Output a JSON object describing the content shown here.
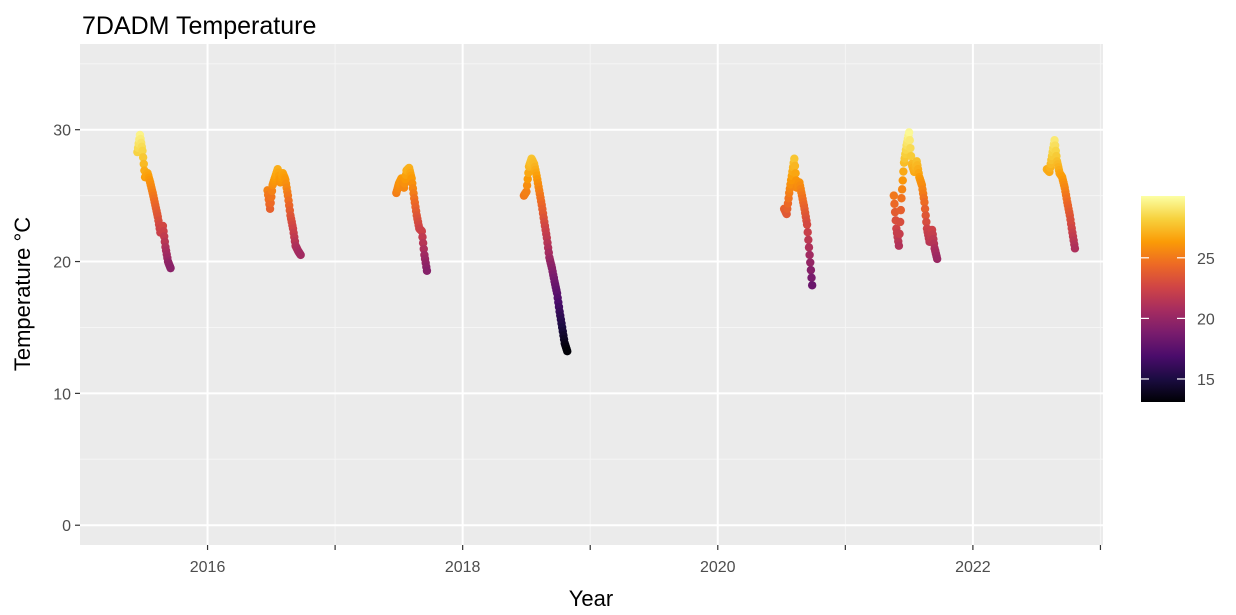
{
  "chart_data": {
    "type": "scatter",
    "title": "7DADM Temperature",
    "xlabel": "Year",
    "ylabel": "Temperature °C",
    "xlim": [
      2015.0,
      2023.02
    ],
    "ylim": [
      -1.5,
      36.5
    ],
    "x_ticks": [
      {
        "value": 2016,
        "label": "2016"
      },
      {
        "value": 2018,
        "label": "2018"
      },
      {
        "value": 2020,
        "label": "2020"
      },
      {
        "value": 2022,
        "label": "2022"
      }
    ],
    "x_minor_ticks": [
      2017,
      2019,
      2021,
      2023
    ],
    "y_ticks": [
      {
        "value": 0,
        "label": "0"
      },
      {
        "value": 10,
        "label": "10"
      },
      {
        "value": 20,
        "label": "20"
      },
      {
        "value": 30,
        "label": "30"
      }
    ],
    "y_minor_ticks": [
      5,
      15,
      25,
      35
    ],
    "grid": true,
    "legend": {
      "position": "right",
      "type": "colorbar",
      "range": [
        13.1,
        30.1
      ],
      "ticks": [
        {
          "value": 15,
          "label": "15"
        },
        {
          "value": 20,
          "label": "20"
        },
        {
          "value": 25,
          "label": "25"
        }
      ],
      "palette": [
        "#000004",
        "#1b0c41",
        "#4a0c6b",
        "#781c6d",
        "#a52c60",
        "#cf4446",
        "#ed6925",
        "#fb9b06",
        "#f7d13d",
        "#fcffa4"
      ]
    },
    "colors": {
      "panel": "#ebebeb",
      "grid_major": "#ffffff",
      "grid_minor": "#f5f5f5",
      "axis_text": "#4d4d4d",
      "tick": "#333333"
    },
    "seasons": [
      {
        "x": [
          2015.45,
          2015.47,
          2015.49,
          2015.51,
          2015.53,
          2015.55,
          2015.57,
          2015.59,
          2015.61,
          2015.63,
          2015.65,
          2015.67,
          2015.69,
          2015.71
        ],
        "y": [
          28.3,
          29.6,
          28.4,
          26.4,
          26.7,
          26.0,
          25.2,
          24.3,
          23.4,
          22.2,
          22.7,
          21.1,
          20.0,
          19.5
        ]
      },
      {
        "x": [
          2016.47,
          2016.49,
          2016.51,
          2016.53,
          2016.55,
          2016.57,
          2016.59,
          2016.61,
          2016.63,
          2016.65,
          2016.67,
          2016.69,
          2016.71,
          2016.73
        ],
        "y": [
          25.4,
          24.0,
          25.8,
          26.4,
          27.0,
          26.0,
          26.7,
          26.2,
          25.0,
          23.5,
          22.5,
          21.2,
          20.8,
          20.5
        ]
      },
      {
        "x": [
          2017.48,
          2017.5,
          2017.52,
          2017.54,
          2017.56,
          2017.58,
          2017.6,
          2017.62,
          2017.64,
          2017.66,
          2017.68,
          2017.7,
          2017.72
        ],
        "y": [
          25.2,
          25.9,
          26.3,
          25.6,
          26.9,
          27.1,
          26.3,
          24.8,
          23.5,
          22.5,
          22.3,
          20.5,
          19.3
        ]
      },
      {
        "x": [
          2018.48,
          2018.5,
          2018.52,
          2018.54,
          2018.56,
          2018.58,
          2018.6,
          2018.62,
          2018.64,
          2018.66,
          2018.68,
          2018.7,
          2018.72,
          2018.74,
          2018.76,
          2018.78,
          2018.8,
          2018.82
        ],
        "y": [
          25.0,
          25.3,
          27.2,
          27.8,
          27.4,
          26.5,
          25.4,
          24.3,
          23.0,
          21.8,
          20.3,
          19.5,
          18.5,
          17.6,
          16.2,
          15.0,
          13.8,
          13.2
        ]
      },
      {
        "x": [
          2020.52,
          2020.54,
          2020.56,
          2020.58,
          2020.6,
          2020.62,
          2020.64,
          2020.66,
          2020.68,
          2020.7,
          2020.72,
          2020.74
        ],
        "y": [
          24.0,
          23.6,
          25.2,
          26.5,
          27.8,
          25.6,
          26.0,
          25.0,
          24.0,
          22.8,
          20.5,
          18.2
        ]
      },
      {
        "x": [
          2021.38,
          2021.4,
          2021.42,
          2021.44,
          2021.46,
          2021.48,
          2021.5,
          2021.52,
          2021.54,
          2021.56,
          2021.58,
          2021.6,
          2021.62,
          2021.64,
          2021.66,
          2021.68,
          2021.7,
          2021.72
        ],
        "y": [
          25.0,
          22.5,
          21.2,
          24.8,
          27.5,
          28.8,
          29.8,
          27.4,
          26.8,
          27.6,
          26.4,
          25.8,
          24.5,
          22.5,
          21.5,
          22.4,
          21.0,
          20.2
        ]
      },
      {
        "x": [
          2022.58,
          2022.6,
          2022.62,
          2022.64,
          2022.66,
          2022.68,
          2022.7,
          2022.72,
          2022.74,
          2022.76,
          2022.78,
          2022.8
        ],
        "y": [
          27.0,
          26.8,
          28.0,
          29.2,
          27.6,
          26.7,
          26.4,
          25.6,
          24.5,
          23.5,
          22.2,
          21.0
        ]
      }
    ]
  }
}
